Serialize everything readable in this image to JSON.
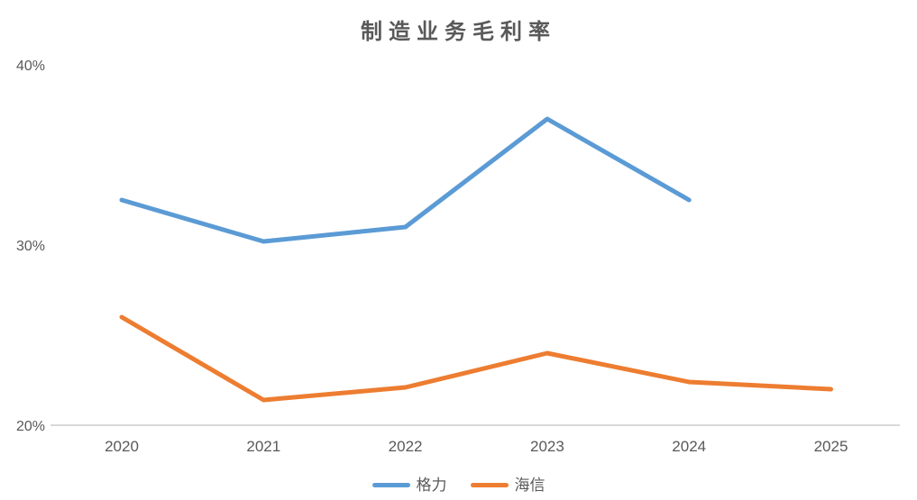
{
  "chart_data": {
    "type": "line",
    "title": "制造业务毛利率",
    "categories": [
      "2020",
      "2021",
      "2022",
      "2023",
      "2024",
      "2025"
    ],
    "series": [
      {
        "name": "格力",
        "color": "#5B9BD5",
        "values": [
          32.5,
          30.2,
          31.0,
          37.0,
          32.5,
          null
        ]
      },
      {
        "name": "海信",
        "color": "#ED7D31",
        "values": [
          26.0,
          21.4,
          22.1,
          24.0,
          22.4,
          22.0
        ]
      }
    ],
    "xlabel": "",
    "ylabel": "",
    "ylim": [
      20,
      40
    ],
    "yticks": [
      {
        "value": 40,
        "label": "40%"
      },
      {
        "value": 30,
        "label": "30%"
      },
      {
        "value": 20,
        "label": "20%"
      }
    ],
    "grid": "off",
    "legend_position": "bottom",
    "colors": {
      "axis_line": "#D9D9D9",
      "text": "#595959",
      "background": "#FFFFFF"
    }
  }
}
